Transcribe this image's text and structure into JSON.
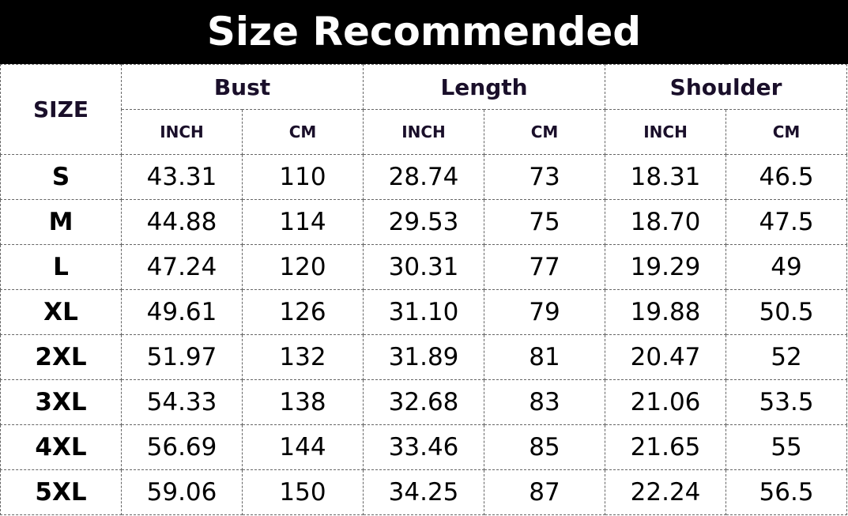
{
  "title": "Size Recommended",
  "header": {
    "size": "SIZE",
    "groups": [
      "Bust",
      "Length",
      "Shoulder"
    ],
    "units": [
      "INCH",
      "CM",
      "INCH",
      "CM",
      "INCH",
      "CM"
    ]
  },
  "rows": [
    [
      "S",
      "43.31",
      "110",
      "28.74",
      "73",
      "18.31",
      "46.5"
    ],
    [
      "M",
      "44.88",
      "114",
      "29.53",
      "75",
      "18.70",
      "47.5"
    ],
    [
      "L",
      "47.24",
      "120",
      "30.31",
      "77",
      "19.29",
      "49"
    ],
    [
      "XL",
      "49.61",
      "126",
      "31.10",
      "79",
      "19.88",
      "50.5"
    ],
    [
      "2XL",
      "51.97",
      "132",
      "31.89",
      "81",
      "20.47",
      "52"
    ],
    [
      "3XL",
      "54.33",
      "138",
      "32.68",
      "83",
      "21.06",
      "53.5"
    ],
    [
      "4XL",
      "56.69",
      "144",
      "33.46",
      "85",
      "21.65",
      "55"
    ],
    [
      "5XL",
      "59.06",
      "150",
      "34.25",
      "87",
      "22.24",
      "56.5"
    ]
  ]
}
